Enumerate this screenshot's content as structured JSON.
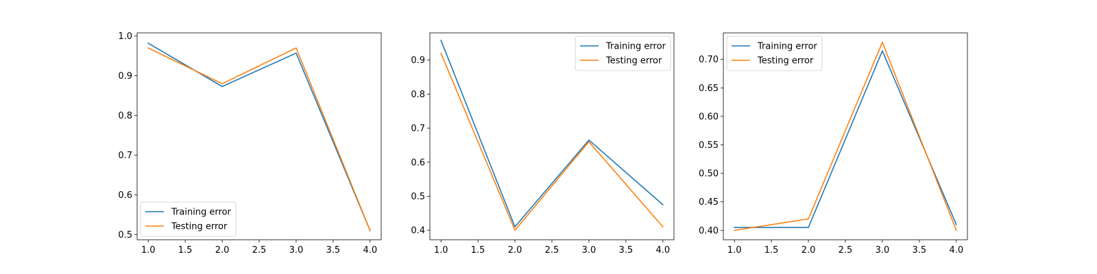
{
  "colors": {
    "series_1": "#1f77b4",
    "series_2": "#ff7f0e",
    "axes": "#000000",
    "background": "#ffffff"
  },
  "chart_data": [
    {
      "type": "line",
      "title": "",
      "xlabel": "",
      "ylabel": "",
      "grid": false,
      "legend_position": "lower-left",
      "xlim": [
        0.85,
        4.15
      ],
      "ylim": [
        0.487,
        1.008
      ],
      "xticks": [
        "1.0",
        "1.5",
        "2.0",
        "2.5",
        "3.0",
        "3.5",
        "4.0"
      ],
      "yticks": [
        "0.5",
        "0.6",
        "0.7",
        "0.8",
        "0.9",
        "1.0"
      ],
      "x": [
        1,
        2,
        3,
        4
      ],
      "series": [
        {
          "name": "Training error",
          "values": [
            0.982,
            0.873,
            0.957,
            0.51
          ]
        },
        {
          "name": "Testing error",
          "values": [
            0.97,
            0.88,
            0.97,
            0.51
          ]
        }
      ]
    },
    {
      "type": "line",
      "title": "",
      "xlabel": "",
      "ylabel": "",
      "grid": false,
      "legend_position": "upper-right",
      "xlim": [
        0.85,
        4.15
      ],
      "ylim": [
        0.372,
        0.98
      ],
      "xticks": [
        "1.0",
        "1.5",
        "2.0",
        "2.5",
        "3.0",
        "3.5",
        "4.0"
      ],
      "yticks": [
        "0.4",
        "0.5",
        "0.6",
        "0.7",
        "0.8",
        "0.9"
      ],
      "x": [
        1,
        2,
        3,
        4
      ],
      "series": [
        {
          "name": "Training error",
          "values": [
            0.958,
            0.41,
            0.665,
            0.475
          ]
        },
        {
          "name": "Testing error",
          "values": [
            0.92,
            0.4,
            0.66,
            0.41
          ]
        }
      ]
    },
    {
      "type": "line",
      "title": "",
      "xlabel": "",
      "ylabel": "",
      "grid": false,
      "legend_position": "upper-left",
      "xlim": [
        0.85,
        4.15
      ],
      "ylim": [
        0.3835,
        0.7465
      ],
      "xticks": [
        "1.0",
        "1.5",
        "2.0",
        "2.5",
        "3.0",
        "3.5",
        "4.0"
      ],
      "yticks": [
        "0.40",
        "0.45",
        "0.50",
        "0.55",
        "0.60",
        "0.65",
        "0.70"
      ],
      "x": [
        1,
        2,
        3,
        4
      ],
      "series": [
        {
          "name": "Training error",
          "values": [
            0.405,
            0.405,
            0.715,
            0.41
          ]
        },
        {
          "name": "Testing error",
          "values": [
            0.4,
            0.42,
            0.73,
            0.4
          ]
        }
      ]
    }
  ]
}
